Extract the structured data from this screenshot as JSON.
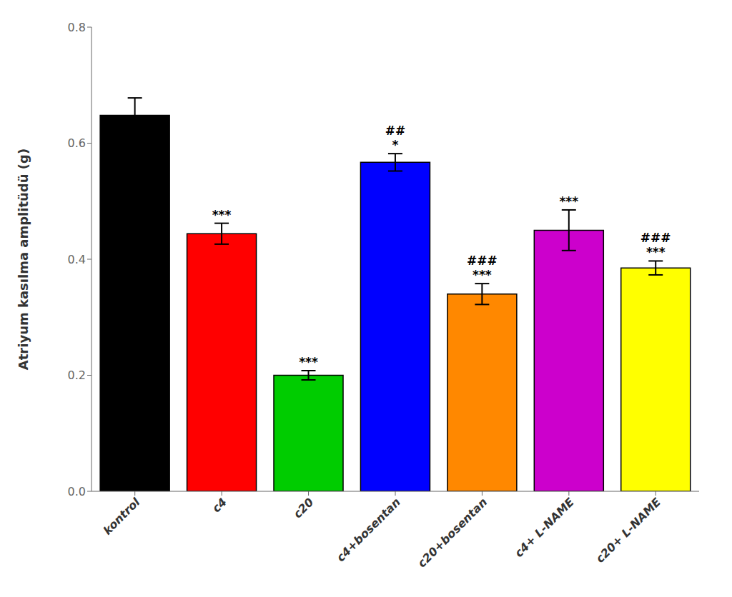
{
  "chart_data": {
    "type": "bar",
    "categories": [
      "kontrol",
      "c4",
      "c20",
      "c4+bosentan",
      "c20+bosentan",
      "c4+ L-NAME",
      "c20+ L-NAME"
    ],
    "values": [
      0.648,
      0.444,
      0.2,
      0.567,
      0.34,
      0.45,
      0.385
    ],
    "errors": [
      0.03,
      0.018,
      0.008,
      0.015,
      0.018,
      0.035,
      0.012
    ],
    "colors": [
      "#000000",
      "#ff0000",
      "#00cc00",
      "#0000ff",
      "#ff8800",
      "#cc00cc",
      "#ffff00"
    ],
    "ylabel": "Atriyum kasılma amplitüdü (g)",
    "ylim": [
      0.0,
      0.8
    ],
    "yticks": [
      {
        "value": 0.0,
        "label": "0.0"
      },
      0.2,
      0.4,
      0.6,
      0.8
    ],
    "annotations": [
      {
        "category": "c4",
        "lines": [
          "***"
        ]
      },
      {
        "category": "c20",
        "lines": [
          "***"
        ]
      },
      {
        "category": "c4+bosentan",
        "lines": [
          "##",
          "*"
        ]
      },
      {
        "category": "c20+bosentan",
        "lines": [
          "###",
          "***"
        ]
      },
      {
        "category": "c4+ L-NAME",
        "lines": [
          "***"
        ]
      },
      {
        "category": "c20+ L-NAME",
        "lines": [
          "###",
          "***"
        ]
      }
    ],
    "grid": false
  }
}
